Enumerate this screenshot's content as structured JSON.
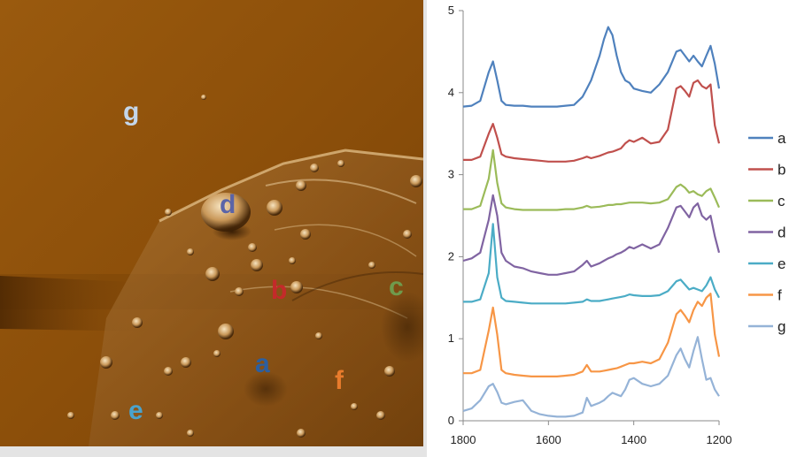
{
  "image_panel": {
    "labels": [
      {
        "text": "g",
        "color": "#c4d6ea"
      },
      {
        "text": "d",
        "color": "#5a64a8"
      },
      {
        "text": "b",
        "color": "#c42a2a"
      },
      {
        "text": "c",
        "color": "#6f9a4c"
      },
      {
        "text": "a",
        "color": "#2c5fa0"
      },
      {
        "text": "f",
        "color": "#e87b2c"
      },
      {
        "text": "e",
        "color": "#4aa3cc"
      }
    ]
  },
  "chart_data": {
    "type": "line",
    "title": "",
    "xlabel": "",
    "ylabel": "",
    "xlim": [
      1800,
      1200
    ],
    "ylim": [
      0,
      5
    ],
    "x_ticks": [
      "1800",
      "1600",
      "1400",
      "1200"
    ],
    "y_ticks": [
      "0",
      "1",
      "2",
      "3",
      "4",
      "5"
    ],
    "grid": false,
    "legend_position": "right",
    "x": [
      1800,
      1780,
      1760,
      1740,
      1730,
      1720,
      1710,
      1700,
      1680,
      1660,
      1640,
      1620,
      1600,
      1580,
      1560,
      1540,
      1520,
      1510,
      1500,
      1480,
      1470,
      1460,
      1450,
      1440,
      1430,
      1420,
      1410,
      1400,
      1380,
      1360,
      1340,
      1320,
      1300,
      1290,
      1280,
      1270,
      1260,
      1250,
      1240,
      1230,
      1220,
      1210,
      1200
    ],
    "series": [
      {
        "name": "a",
        "color": "#4f81bd",
        "values": [
          3.83,
          3.84,
          3.9,
          4.25,
          4.38,
          4.15,
          3.9,
          3.85,
          3.84,
          3.84,
          3.83,
          3.83,
          3.83,
          3.83,
          3.84,
          3.85,
          3.95,
          4.05,
          4.15,
          4.45,
          4.65,
          4.8,
          4.7,
          4.45,
          4.25,
          4.15,
          4.12,
          4.05,
          4.02,
          4.0,
          4.1,
          4.25,
          4.5,
          4.52,
          4.45,
          4.38,
          4.45,
          4.38,
          4.32,
          4.45,
          4.57,
          4.35,
          4.05
        ]
      },
      {
        "name": "b",
        "color": "#c0504d",
        "values": [
          3.18,
          3.18,
          3.22,
          3.5,
          3.62,
          3.45,
          3.25,
          3.22,
          3.2,
          3.19,
          3.18,
          3.17,
          3.16,
          3.16,
          3.16,
          3.17,
          3.2,
          3.22,
          3.2,
          3.23,
          3.25,
          3.27,
          3.28,
          3.3,
          3.32,
          3.38,
          3.42,
          3.4,
          3.45,
          3.38,
          3.4,
          3.55,
          4.05,
          4.08,
          4.02,
          3.95,
          4.12,
          4.15,
          4.08,
          4.05,
          4.1,
          3.6,
          3.38
        ]
      },
      {
        "name": "c",
        "color": "#9bbb59",
        "values": [
          2.58,
          2.58,
          2.62,
          2.95,
          3.3,
          2.9,
          2.65,
          2.6,
          2.58,
          2.57,
          2.57,
          2.57,
          2.57,
          2.57,
          2.58,
          2.58,
          2.6,
          2.62,
          2.6,
          2.61,
          2.62,
          2.63,
          2.63,
          2.64,
          2.64,
          2.65,
          2.66,
          2.66,
          2.66,
          2.65,
          2.66,
          2.7,
          2.85,
          2.88,
          2.84,
          2.78,
          2.8,
          2.76,
          2.74,
          2.8,
          2.83,
          2.72,
          2.6
        ]
      },
      {
        "name": "d",
        "color": "#8064a2",
        "values": [
          1.95,
          1.98,
          2.05,
          2.45,
          2.75,
          2.5,
          2.05,
          1.95,
          1.88,
          1.86,
          1.82,
          1.8,
          1.78,
          1.78,
          1.8,
          1.82,
          1.9,
          1.95,
          1.88,
          1.92,
          1.95,
          1.98,
          2.0,
          2.03,
          2.05,
          2.08,
          2.12,
          2.1,
          2.15,
          2.1,
          2.15,
          2.35,
          2.6,
          2.62,
          2.55,
          2.48,
          2.6,
          2.65,
          2.5,
          2.45,
          2.5,
          2.25,
          2.05
        ]
      },
      {
        "name": "e",
        "color": "#4bacc6",
        "values": [
          1.45,
          1.45,
          1.48,
          1.8,
          2.4,
          1.75,
          1.5,
          1.46,
          1.45,
          1.44,
          1.43,
          1.43,
          1.43,
          1.43,
          1.43,
          1.44,
          1.45,
          1.48,
          1.46,
          1.46,
          1.47,
          1.48,
          1.49,
          1.5,
          1.51,
          1.52,
          1.54,
          1.53,
          1.52,
          1.52,
          1.53,
          1.58,
          1.7,
          1.72,
          1.66,
          1.6,
          1.62,
          1.6,
          1.58,
          1.65,
          1.75,
          1.6,
          1.5
        ]
      },
      {
        "name": "f",
        "color": "#f79646",
        "values": [
          0.58,
          0.58,
          0.62,
          1.1,
          1.38,
          1.05,
          0.62,
          0.58,
          0.56,
          0.55,
          0.54,
          0.54,
          0.54,
          0.54,
          0.55,
          0.56,
          0.6,
          0.68,
          0.6,
          0.6,
          0.61,
          0.62,
          0.63,
          0.64,
          0.66,
          0.68,
          0.7,
          0.7,
          0.72,
          0.7,
          0.75,
          0.95,
          1.3,
          1.35,
          1.28,
          1.2,
          1.35,
          1.45,
          1.4,
          1.5,
          1.55,
          1.05,
          0.78
        ]
      },
      {
        "name": "g",
        "color": "#95b3d7",
        "values": [
          0.12,
          0.15,
          0.25,
          0.42,
          0.45,
          0.35,
          0.22,
          0.2,
          0.23,
          0.25,
          0.12,
          0.08,
          0.06,
          0.05,
          0.05,
          0.06,
          0.1,
          0.28,
          0.18,
          0.22,
          0.25,
          0.3,
          0.34,
          0.32,
          0.3,
          0.38,
          0.5,
          0.52,
          0.45,
          0.42,
          0.45,
          0.55,
          0.8,
          0.88,
          0.75,
          0.65,
          0.85,
          1.02,
          0.75,
          0.5,
          0.52,
          0.38,
          0.3
        ]
      }
    ]
  }
}
